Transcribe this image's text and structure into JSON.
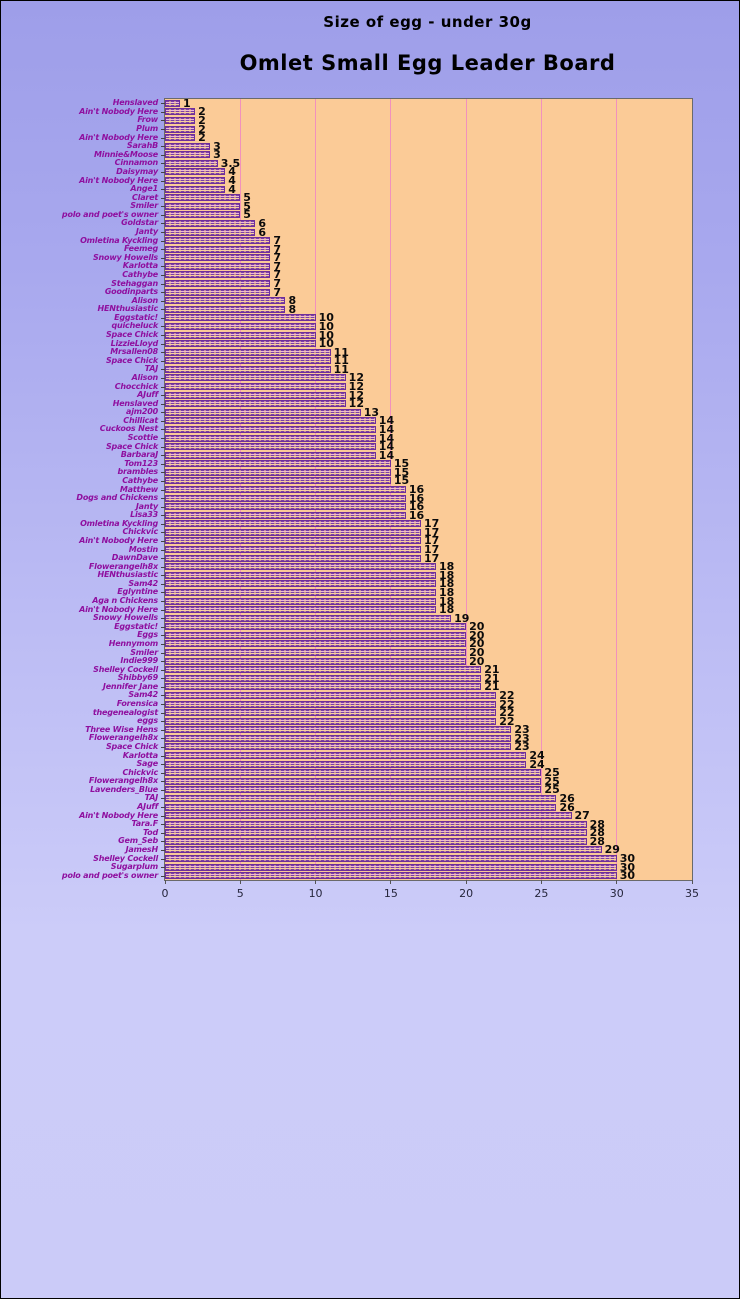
{
  "colors": {
    "page_gradient_top": "#9e9ee9",
    "page_gradient_bottom": "#cbcbf8",
    "plot_background": "#fbcb97",
    "gridline_pink": "#f291bd",
    "bar_purple": "#7c3fa4",
    "bar_light_pink": "#edb9d9",
    "category_label_color": "#8f0f9f",
    "value_label_color": "#0b0b0b",
    "title_color": "#000000"
  },
  "chart_data": {
    "type": "bar",
    "orientation": "horizontal",
    "subtitle": "Size of egg - under 30g",
    "title": "Omlet Small Egg Leader Board",
    "xlabel": "",
    "ylabel": "",
    "xlim": [
      0,
      35
    ],
    "x_ticks": [
      0,
      5,
      10,
      15,
      20,
      25,
      30,
      35
    ],
    "grid": true,
    "legend": false,
    "categories": [
      "Henslaved",
      "Ain't Nobody Here",
      "Frow",
      "Plum",
      "Ain't Nobody Here",
      "SarahB",
      "Minnie&Moose",
      "Cinnamon",
      "Daisymay",
      "Ain't Nobody Here",
      "Ange1",
      "Claret",
      "Smiler",
      "polo and poet's owner",
      "Goldstar",
      "Janty",
      "Omletina Kyckling",
      "Feemeg",
      "Snowy Howells",
      "Karlotta",
      "Cathybe",
      "Stehaggan",
      "Goodinparts",
      "Alison",
      "HENthusiastic",
      "Eggstatic!",
      "quicheluck",
      "Space Chick",
      "LizzieLloyd",
      "Mrsallen08",
      "Space Chick",
      "TAJ",
      "Alison",
      "Chocchick",
      "AJuff",
      "Henslaved",
      "ajm200",
      "Chillicat",
      "Cuckoos Nest",
      "Scottie",
      "Space Chick",
      "BarbaraJ",
      "Tom123",
      "brambles",
      "Cathybe",
      "Matthew",
      "Dogs and Chickens",
      "Janty",
      "Lisa33",
      "Omletina Kyckling",
      "Chickvic",
      "Ain't Nobody Here",
      "Mostin",
      "DawnDave",
      "Flowerangelh8x",
      "HENthusiastic",
      "Sam42",
      "Eglyntine",
      "Aga n Chickens",
      "Ain't Nobody Here",
      "Snowy Howells",
      "Eggstatic!",
      "Eggs",
      "Hennymom",
      "Smiler",
      "Indie999",
      "Shelley Cockell",
      "Shibby69",
      "Jennifer Jane",
      "Sam42",
      "Forensica",
      "thegenealogist",
      "eggs",
      "Three Wise Hens",
      "Flowerangelh8x",
      "Space Chick",
      "Karlotta",
      "Sage",
      "Chickvic",
      "Flowerangelh8x",
      "Lavenders_Blue",
      "TAJ",
      "AJuff",
      "Ain't Nobody Here",
      "Tara.F",
      "Tod",
      "Gem_Seb",
      "JamesH",
      "Shelley Cockell",
      "Sugarplum",
      "polo and poet's owner"
    ],
    "values": [
      1,
      2,
      2,
      2,
      2,
      3,
      3,
      3.5,
      4,
      4,
      4,
      5,
      5,
      5,
      6,
      6,
      7,
      7,
      7,
      7,
      7,
      7,
      7,
      8,
      8,
      10,
      10,
      10,
      10,
      11,
      11,
      11,
      12,
      12,
      12,
      12,
      13,
      14,
      14,
      14,
      14,
      14,
      15,
      15,
      15,
      16,
      16,
      16,
      16,
      17,
      17,
      17,
      17,
      17,
      18,
      18,
      18,
      18,
      18,
      18,
      19,
      20,
      20,
      20,
      20,
      20,
      21,
      21,
      21,
      22,
      22,
      22,
      22,
      23,
      23,
      23,
      24,
      24,
      25,
      25,
      25,
      26,
      26,
      27,
      28,
      28,
      28,
      29,
      30,
      30,
      30
    ]
  }
}
